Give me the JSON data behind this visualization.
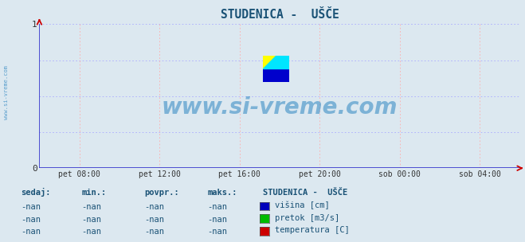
{
  "title": "STUDENICA -  UŠČE",
  "title_color": "#1a5276",
  "bg_color": "#dce8f0",
  "plot_bg_color": "#dce8f0",
  "xmin": 0,
  "xmax": 1,
  "ymin": 0,
  "ymax": 1,
  "ytick_vals": [
    0,
    1
  ],
  "ytick_labels": [
    "0",
    "1"
  ],
  "xtick_labels": [
    "pet 08:00",
    "pet 12:00",
    "pet 16:00",
    "pet 20:00",
    "sob 00:00",
    "sob 04:00"
  ],
  "xtick_positions": [
    0.0833,
    0.25,
    0.4167,
    0.5833,
    0.75,
    0.9167
  ],
  "grid_color_h": "#aaaaff",
  "grid_color_v": "#ffaaaa",
  "axis_line_color": "#3333cc",
  "arrow_color": "#cc0000",
  "watermark_text": "www.si-vreme.com",
  "watermark_color": "#2e86c1",
  "watermark_alpha": 0.55,
  "side_text": "www.si-vreme.com",
  "side_text_color": "#2e86c1",
  "legend_title": "STUDENICA -  UŠČE",
  "legend_title_color": "#1a5276",
  "legend_items": [
    {
      "label": "višina [cm]",
      "color": "#0000bb"
    },
    {
      "label": "pretok [m3/s]",
      "color": "#00bb00"
    },
    {
      "label": "temperatura [C]",
      "color": "#cc0000"
    }
  ],
  "table_headers": [
    "sedaj:",
    "min.:",
    "povpr.:",
    "maks.:"
  ],
  "table_rows": [
    [
      "-nan",
      "-nan",
      "-nan",
      "-nan"
    ],
    [
      "-nan",
      "-nan",
      "-nan",
      "-nan"
    ],
    [
      "-nan",
      "-nan",
      "-nan",
      "-nan"
    ]
  ],
  "table_text_color": "#1a5276",
  "logo_yellow": "#ffff00",
  "logo_cyan": "#00e5ff",
  "logo_blue": "#0000cc"
}
